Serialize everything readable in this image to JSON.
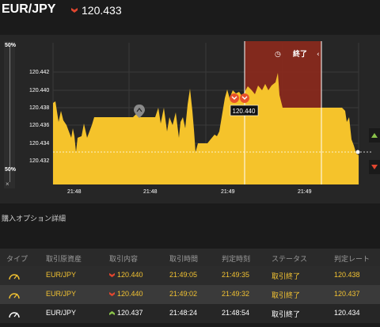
{
  "header": {
    "pair": "EUR/JPY",
    "price": "120.433",
    "direction_icon": "down-arrow-icon",
    "down_color": "#e0462f"
  },
  "chart": {
    "y_ticks": [
      "120.442",
      "120.440",
      "120.438",
      "120.436",
      "120.434",
      "120.432"
    ],
    "x_ticks": [
      "21:48",
      "21:48",
      "21:49",
      "21:49"
    ],
    "end_label": "終了",
    "marker_price": "120.440",
    "gauge_top": "50%",
    "gauge_bottom": "50%",
    "gauge_close": "×",
    "line_color": "#f5c32b",
    "active_zone_color": "#8d2a1d"
  },
  "details": {
    "title": "購入オプション詳細",
    "columns": [
      "タイプ",
      "取引原資産",
      "取引内容",
      "取引時間",
      "判定時刻",
      "ステータス",
      "判定レート"
    ],
    "rows": [
      {
        "type_icon": "gauge-icon",
        "asset": "EUR/JPY",
        "direction": "down",
        "entry": "120.440",
        "time": "21:49:05",
        "judge_time": "21:49:35",
        "status": "取引終了",
        "judge_rate": "120.438"
      },
      {
        "type_icon": "gauge-icon",
        "asset": "EUR/JPY",
        "direction": "down",
        "entry": "120.440",
        "time": "21:49:02",
        "judge_time": "21:49:32",
        "status": "取引終了",
        "judge_rate": "120.437"
      },
      {
        "type_icon": "gauge-icon",
        "asset": "EUR/JPY",
        "direction": "up",
        "entry": "120.437",
        "time": "21:48:24",
        "judge_time": "21:48:54",
        "status": "取引終了",
        "judge_rate": "120.434"
      }
    ]
  }
}
